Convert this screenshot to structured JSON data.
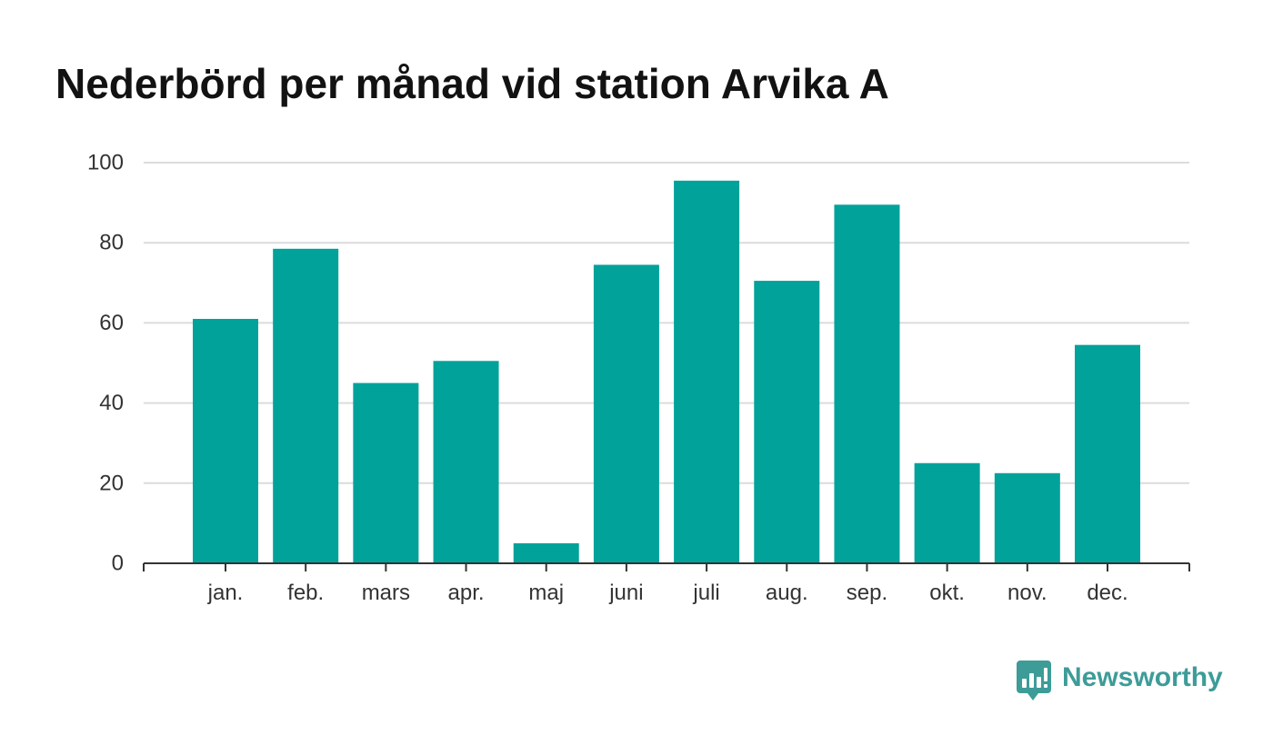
{
  "chart_data": {
    "type": "bar",
    "title": "Nederbörd per månad vid station Arvika A",
    "xlabel": "",
    "ylabel": "",
    "categories": [
      "jan.",
      "feb.",
      "mars",
      "apr.",
      "maj",
      "juni",
      "juli",
      "aug.",
      "sep.",
      "okt.",
      "nov.",
      "dec."
    ],
    "values": [
      61.0,
      78.5,
      45.0,
      50.5,
      5.0,
      74.5,
      95.5,
      70.5,
      89.5,
      25.0,
      22.5,
      54.5
    ],
    "ylim": [
      0,
      100
    ],
    "yticks": [
      0,
      20,
      40,
      60,
      80,
      100
    ],
    "grid": true,
    "legend": "none",
    "colors": {
      "bar": "#00a29a",
      "grid": "#dcdcdc",
      "axis": "#333333",
      "title": "#121212",
      "brand": "#3d9c98"
    }
  },
  "brand": {
    "name": "Newsworthy",
    "icon": "newsworthy-logo-icon"
  }
}
